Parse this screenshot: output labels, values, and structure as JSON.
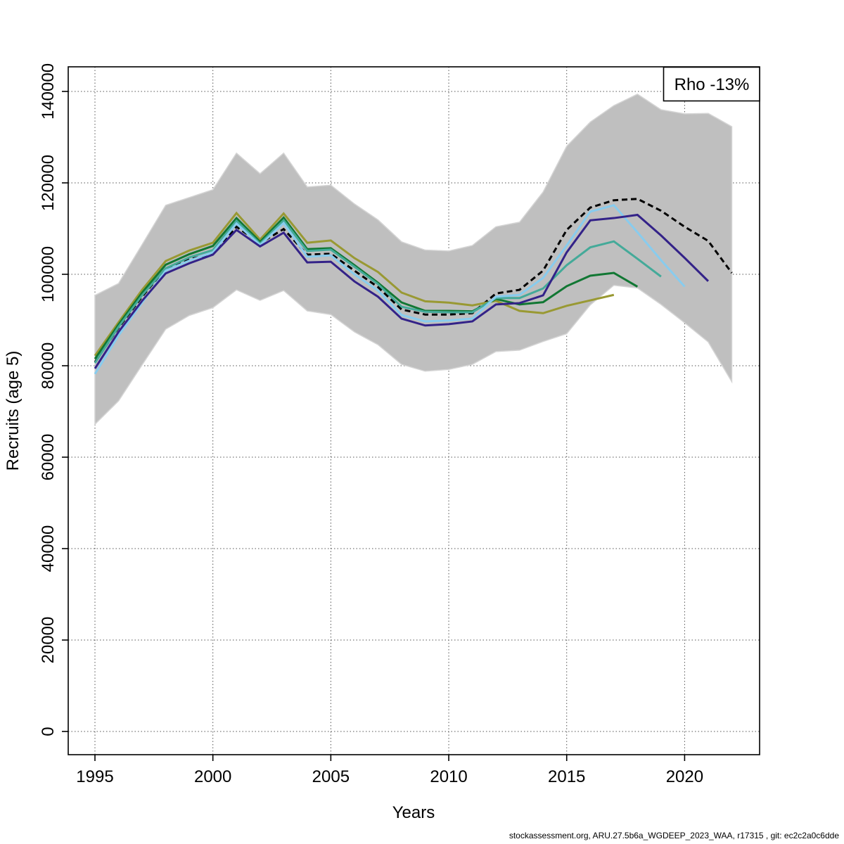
{
  "page": {
    "background": "#ffffff"
  },
  "footer": {
    "text": "stockassessment.org, ARU.27.5b6a_WGDEEP_2023_WAA, r17315 , git: ec2c2a0c6dde"
  },
  "chart_data": {
    "type": "line",
    "title": "",
    "xlabel": "Years",
    "ylabel": "Recruits (age 5)",
    "grid": "dotted",
    "legend_box": {
      "label": "Rho -13%",
      "position": "top-right"
    },
    "x_axis": {
      "label": "Years",
      "ticks": [
        1995,
        2000,
        2005,
        2010,
        2015,
        2020
      ],
      "range": [
        1993.9,
        2023.2
      ]
    },
    "y_axis": {
      "label": "Recruits (age 5)",
      "ticks": [
        0,
        20000,
        40000,
        60000,
        80000,
        100000,
        120000,
        140000
      ],
      "range": [
        -5000,
        145400
      ]
    },
    "band": {
      "name": "confidence-band",
      "color": "#bfbfbf",
      "edge_color": "#d4d4d4",
      "start_year": 1995,
      "end_year": 2022,
      "upper": [
        95400,
        98000,
        106500,
        115100,
        116800,
        118500,
        126500,
        122000,
        126500,
        119100,
        119500,
        115400,
        111900,
        107100,
        105300,
        105100,
        106300,
        110400,
        111400,
        118000,
        128000,
        133300,
        136900,
        139400,
        136000,
        135100,
        135200,
        132300
      ],
      "lower": [
        67200,
        72300,
        80200,
        88000,
        91000,
        92700,
        96600,
        94300,
        96450,
        92000,
        91200,
        87400,
        84600,
        80300,
        78800,
        79200,
        80300,
        83100,
        83400,
        85300,
        87000,
        93300,
        97600,
        97000,
        93400,
        89400,
        85200,
        76500
      ]
    },
    "series": [
      {
        "name": "base-run",
        "color": "#000000",
        "dashed": true,
        "start_year": 1995,
        "end_year": 2022,
        "values": [
          80800,
          88300,
          95100,
          101300,
          103300,
          104400,
          110400,
          106800,
          109900,
          104300,
          104500,
          100800,
          97200,
          92300,
          91200,
          91200,
          91500,
          95800,
          96600,
          100800,
          109700,
          114600,
          116200,
          116500,
          113900,
          110400,
          107300,
          100300
        ]
      },
      {
        "name": "peel-2017",
        "color": "#999933",
        "dashed": false,
        "start_year": 1995,
        "end_year": 2017,
        "values": [
          82200,
          89500,
          96600,
          102900,
          105200,
          106900,
          113400,
          107600,
          113300,
          106900,
          107400,
          103550,
          100500,
          96000,
          94100,
          93800,
          93200,
          94200,
          92000,
          91500,
          93100,
          94300,
          95500
        ]
      },
      {
        "name": "peel-2018",
        "color": "#117733",
        "dashed": false,
        "start_year": 1995,
        "end_year": 2018,
        "values": [
          81500,
          89000,
          96000,
          102100,
          104400,
          106200,
          112300,
          107100,
          112400,
          105500,
          105700,
          102000,
          98150,
          93850,
          92000,
          92000,
          91900,
          94600,
          93400,
          93900,
          97400,
          99700,
          100300,
          97300
        ]
      },
      {
        "name": "peel-2019",
        "color": "#44AA99",
        "dashed": false,
        "start_year": 1995,
        "end_year": 2019,
        "values": [
          80600,
          88500,
          95400,
          101300,
          103700,
          105300,
          111700,
          106700,
          111800,
          105100,
          105400,
          101650,
          97850,
          92900,
          91800,
          91700,
          91700,
          94800,
          94800,
          96900,
          102000,
          105900,
          107200,
          103400,
          99500
        ]
      },
      {
        "name": "peel-2020",
        "color": "#88CCEE",
        "dashed": false,
        "start_year": 1995,
        "end_year": 2020,
        "values": [
          78200,
          86600,
          93800,
          100800,
          103000,
          104800,
          111100,
          106400,
          111200,
          103850,
          104150,
          100000,
          96450,
          91100,
          89700,
          89900,
          90300,
          95100,
          95500,
          99200,
          106300,
          113700,
          115100,
          109200,
          103100,
          97300
        ]
      },
      {
        "name": "peel-2021",
        "color": "#332288",
        "dashed": false,
        "start_year": 1995,
        "end_year": 2021,
        "values": [
          79400,
          87400,
          94200,
          100200,
          102400,
          104300,
          109700,
          106100,
          109100,
          102600,
          102750,
          98450,
          95100,
          90300,
          88800,
          89100,
          89700,
          93400,
          93700,
          95400,
          104800,
          111800,
          112300,
          113000,
          108500,
          103600,
          98500
        ]
      }
    ]
  }
}
